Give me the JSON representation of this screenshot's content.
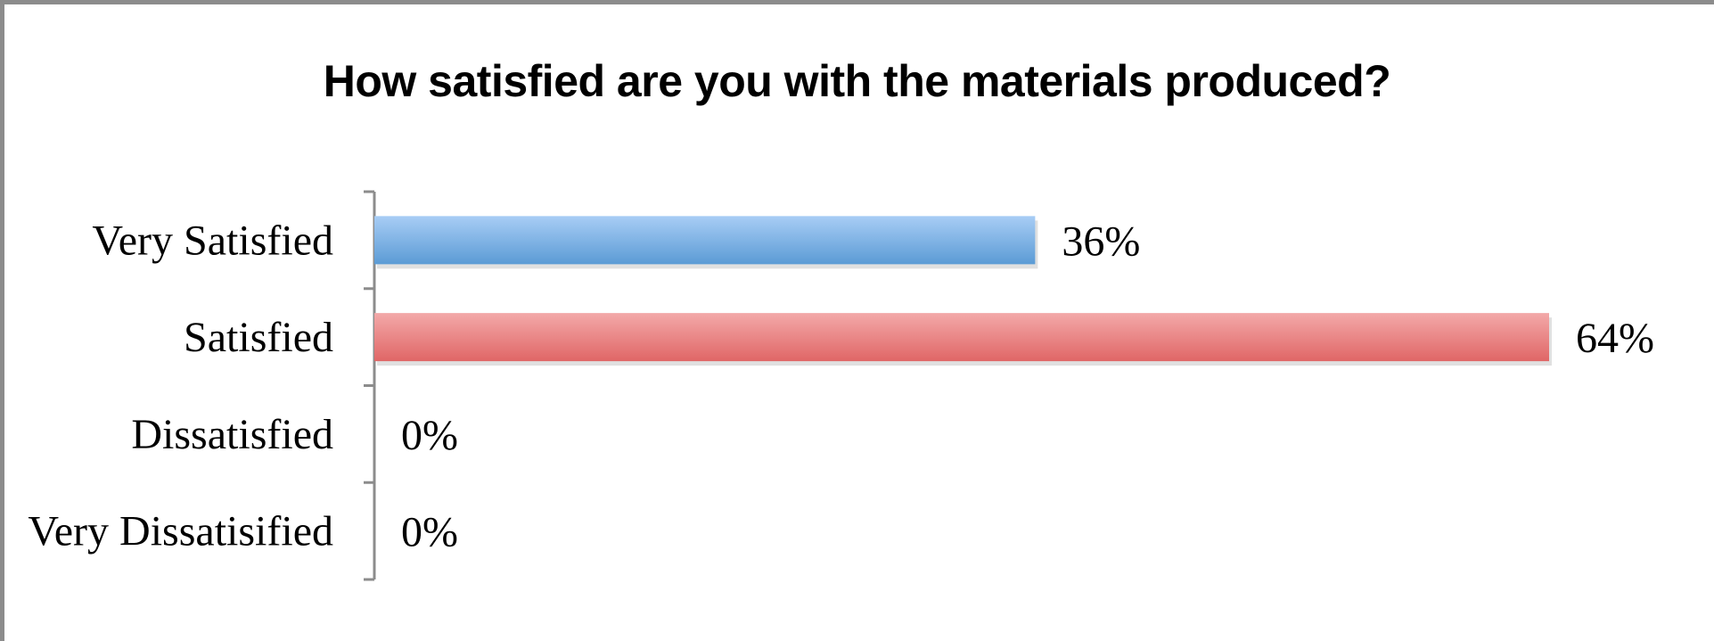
{
  "chart_data": {
    "type": "bar",
    "orientation": "horizontal",
    "title": "How satisfied are you with the materials produced?",
    "xlabel": "",
    "ylabel": "",
    "categories": [
      "Very Satisfied",
      "Satisfied",
      "Dissatisfied",
      "Very Dissatisified"
    ],
    "values": [
      36,
      64,
      0,
      0
    ],
    "value_labels": [
      "36%",
      "64%",
      "0%",
      "0%"
    ],
    "unit": "%",
    "xlim": [
      0,
      64
    ],
    "grid": false,
    "legend": "none",
    "colors": [
      "#5b9bd5",
      "#e06666",
      "#9bbb59",
      "#8064a2"
    ],
    "colors_light": [
      "#a8cdf5",
      "#f3a9a9",
      "#c9dca0",
      "#b6a3cf"
    ]
  }
}
